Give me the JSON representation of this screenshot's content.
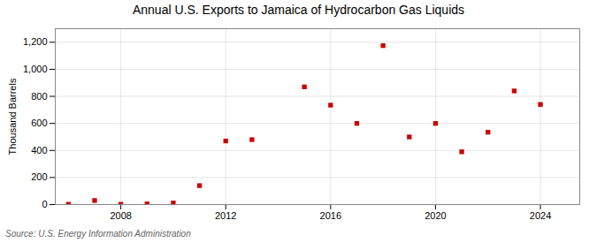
{
  "chart_data": {
    "type": "scatter",
    "title": "Annual U.S. Exports to Jamaica of Hydrocarbon Gas Liquids",
    "ylabel": "Thousand Barrels",
    "source": "Source: U.S. Energy Information Administration",
    "x": [
      2006,
      2007,
      2008,
      2009,
      2010,
      2011,
      2012,
      2013,
      2015,
      2016,
      2017,
      2018,
      2019,
      2020,
      2021,
      2022,
      2023,
      2024
    ],
    "values": [
      2,
      30,
      2,
      5,
      12,
      140,
      470,
      480,
      870,
      735,
      600,
      1175,
      500,
      600,
      390,
      535,
      840,
      740
    ],
    "color": "#cc0000",
    "marker": "square",
    "xlim": [
      2005.5,
      2025.5
    ],
    "xticks": [
      2008,
      2012,
      2016,
      2020,
      2024
    ],
    "ylim": [
      0,
      1300
    ],
    "yticks": [
      0,
      200,
      400,
      600,
      800,
      {
        "value": 1000,
        "label": "1,000"
      },
      {
        "value": 1200,
        "label": "1,200"
      }
    ],
    "grid": true
  }
}
